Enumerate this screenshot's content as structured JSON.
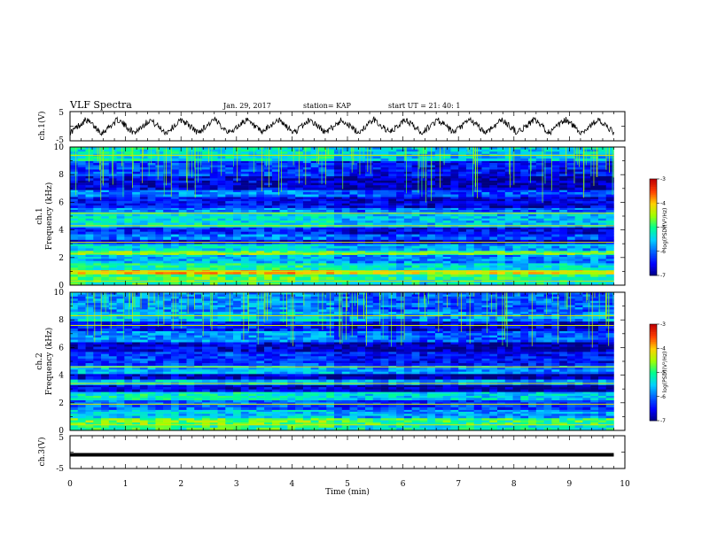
{
  "header": {
    "title": "VLF Spectra",
    "date": "Jan. 29, 2017",
    "station": "station= KAP",
    "start": "start UT =  21: 40: 1"
  },
  "chart_data": [
    {
      "type": "line",
      "title": "",
      "ylabel": "ch.1(V)",
      "ylim": [
        -5,
        5
      ],
      "yticks": [
        "5",
        "-5"
      ],
      "xlim": [
        0,
        10
      ],
      "note": "oscillating voltage trace, approx. 17 cycles over 9.8 min, amplitude ~3 V",
      "series": [
        {
          "x_range": [
            0,
            9.8
          ],
          "amplitude": 3,
          "cycles": 17
        }
      ]
    },
    {
      "type": "heatmap",
      "ylabel_line1": "ch.1",
      "ylabel_line2": "Frequency (kHz)",
      "ylim": [
        0,
        10
      ],
      "yticks": [
        "0",
        "2",
        "4",
        "6",
        "8",
        "10"
      ],
      "xlim": [
        0,
        10
      ],
      "data_xmax": 9.8,
      "bands": [
        {
          "f": [
            0.0,
            0.4
          ],
          "level": -5.0
        },
        {
          "f": [
            0.4,
            0.8
          ],
          "level": -4.8
        },
        {
          "f": [
            0.8,
            1.1
          ],
          "level": -4.0
        },
        {
          "f": [
            1.1,
            1.6
          ],
          "level": -5.1
        },
        {
          "f": [
            1.6,
            2.2
          ],
          "level": -5.6
        },
        {
          "f": [
            2.2,
            2.5
          ],
          "level": -4.6
        },
        {
          "f": [
            2.5,
            3.0
          ],
          "level": -5.4
        },
        {
          "f": [
            3.0,
            3.3
          ],
          "level": -6.5
        },
        {
          "f": [
            3.3,
            3.7
          ],
          "level": -5.9
        },
        {
          "f": [
            3.7,
            4.2
          ],
          "level": -6.3
        },
        {
          "f": [
            4.2,
            5.3
          ],
          "level": -5.3
        },
        {
          "f": [
            5.3,
            5.6
          ],
          "level": -5.8
        },
        {
          "f": [
            5.6,
            6.4
          ],
          "level": -6.4
        },
        {
          "f": [
            6.4,
            6.9
          ],
          "level": -5.9
        },
        {
          "f": [
            6.9,
            7.9
          ],
          "level": -6.6
        },
        {
          "f": [
            7.9,
            9.0
          ],
          "level": -6.2
        },
        {
          "f": [
            9.0,
            10.0
          ],
          "level": -5.3
        }
      ],
      "lines_kHz": [
        0.3,
        1.0,
        2.3,
        3.1,
        4.3,
        5.2,
        9.4
      ],
      "colorbar": {
        "label": "log(PSD)(V²/Hz)",
        "ticks": [
          "-3",
          "-4",
          "-5",
          "-6",
          "-7"
        ],
        "range": [
          -7,
          -3
        ]
      }
    },
    {
      "type": "heatmap",
      "ylabel_line1": "ch.2",
      "ylabel_line2": "Frequency (kHz)",
      "ylim": [
        0,
        10
      ],
      "yticks": [
        "0",
        "2",
        "4",
        "6",
        "8",
        "10"
      ],
      "xlim": [
        0,
        10
      ],
      "data_xmax": 9.8,
      "bands": [
        {
          "f": [
            0.0,
            0.4
          ],
          "level": -5.0
        },
        {
          "f": [
            0.4,
            0.9
          ],
          "level": -4.7
        },
        {
          "f": [
            0.9,
            1.5
          ],
          "level": -5.5
        },
        {
          "f": [
            1.5,
            2.2
          ],
          "level": -6.0
        },
        {
          "f": [
            2.2,
            2.8
          ],
          "level": -5.2
        },
        {
          "f": [
            2.8,
            3.3
          ],
          "level": -6.6
        },
        {
          "f": [
            3.3,
            3.7
          ],
          "level": -5.5
        },
        {
          "f": [
            3.7,
            4.1
          ],
          "level": -6.7
        },
        {
          "f": [
            4.1,
            4.7
          ],
          "level": -5.6
        },
        {
          "f": [
            4.7,
            5.7
          ],
          "level": -6.2
        },
        {
          "f": [
            5.7,
            6.4
          ],
          "level": -6.6
        },
        {
          "f": [
            6.4,
            7.2
          ],
          "level": -5.8
        },
        {
          "f": [
            7.2,
            7.9
          ],
          "level": -6.4
        },
        {
          "f": [
            7.9,
            8.6
          ],
          "level": -5.5
        },
        {
          "f": [
            8.6,
            10.0
          ],
          "level": -5.8
        }
      ],
      "lines_kHz": [
        0.4,
        1.9,
        3.4,
        4.6,
        7.6,
        8.3
      ],
      "colorbar": {
        "label": "log(PSD)(V²/Hz)",
        "ticks": [
          "-3",
          "-4",
          "-5",
          "-6",
          "-7"
        ],
        "range": [
          -7,
          -3
        ]
      }
    },
    {
      "type": "line",
      "ylabel": "ch.3(V)",
      "ylim": [
        -5,
        5
      ],
      "yticks": [
        "5",
        "-5"
      ],
      "xlim": [
        0,
        10
      ],
      "series": [
        {
          "x_range": [
            0,
            9.8
          ],
          "y": -0.8
        }
      ]
    }
  ],
  "xaxis": {
    "label": "Time (min)",
    "ticks": [
      "0",
      "1",
      "2",
      "3",
      "4",
      "5",
      "6",
      "7",
      "8",
      "9",
      "10"
    ]
  },
  "colors": {
    "colormap": [
      "#00007f",
      "#0000ff",
      "#0060ff",
      "#00d0ff",
      "#00ff90",
      "#a0ff00",
      "#ffd000",
      "#ff4000",
      "#c00000"
    ]
  }
}
